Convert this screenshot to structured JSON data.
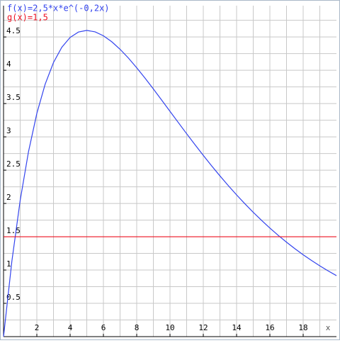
{
  "chart_data": {
    "type": "line",
    "x_label": "x",
    "xlim": [
      0,
      20
    ],
    "xticks": [
      2,
      4,
      6,
      8,
      10,
      12,
      14,
      16,
      18
    ],
    "ylim": [
      0,
      4.97
    ],
    "yticks": [
      0.5,
      1,
      1.5,
      2,
      2.5,
      3,
      3.5,
      4,
      4.5
    ],
    "grid": true,
    "minor_grid": true,
    "series": [
      {
        "name": "f(x)=2,5*x*e^(-0,2x)",
        "color": "#3344ee",
        "x": [
          0,
          0.5,
          1,
          1.5,
          2,
          2.5,
          3,
          3.5,
          4,
          4.5,
          5,
          5.5,
          6,
          6.5,
          7,
          7.5,
          8,
          8.5,
          9,
          9.5,
          10,
          10.5,
          11,
          11.5,
          12,
          12.5,
          13,
          13.5,
          14,
          14.5,
          15,
          15.5,
          16,
          16.5,
          17,
          17.5,
          18,
          18.5,
          19,
          19.5,
          20
        ],
        "values": [
          0,
          1.131,
          2.0468,
          2.7781,
          3.3516,
          3.7908,
          4.1161,
          4.3451,
          4.4933,
          4.5739,
          4.5985,
          4.577,
          4.5179,
          4.4286,
          4.3154,
          4.1837,
          4.0379,
          3.882,
          3.7192,
          3.5523,
          3.3834,
          3.2145,
          3.0471,
          2.8824,
          2.7215,
          2.5652,
          2.4139,
          2.2682,
          2.1283,
          1.9946,
          1.867,
          1.7456,
          1.6305,
          1.5214,
          1.4184,
          1.3211,
          1.2296,
          1.1435,
          1.0626,
          0.9868,
          0.9158
        ]
      },
      {
        "name": "g(x)=1,5",
        "color": "#ee1122",
        "x": [
          0,
          20
        ],
        "values": [
          1.5,
          1.5
        ]
      }
    ]
  }
}
